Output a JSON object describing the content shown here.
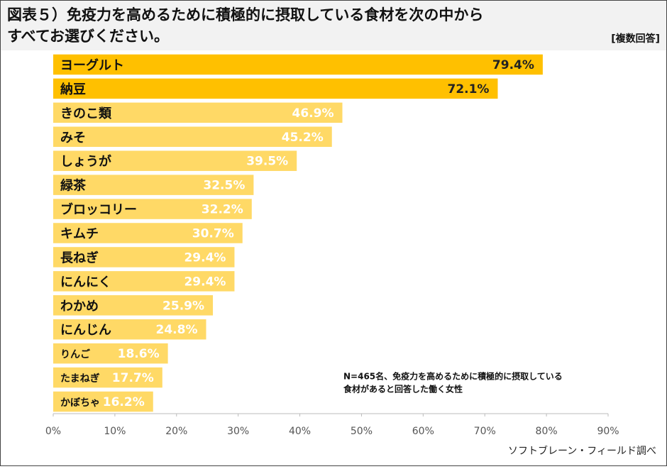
{
  "chart_data": {
    "type": "bar",
    "orientation": "horizontal",
    "title_lines": [
      "図表５）免疫力を高めるために積極的に摂取している食材を次の中から",
      "すべてお選びください。"
    ],
    "subtitle": "[複数回答]",
    "categories": [
      "ヨーグルト",
      "納豆",
      "きのこ類",
      "みそ",
      "しょうが",
      "緑茶",
      "ブロッコリー",
      "キムチ",
      "長ねぎ",
      "にんにく",
      "わかめ",
      "にんじん",
      "りんご",
      "たまねぎ",
      "かぼちゃ"
    ],
    "values": [
      79.4,
      72.1,
      46.9,
      45.2,
      39.5,
      32.5,
      32.2,
      30.7,
      29.4,
      29.4,
      25.9,
      24.8,
      18.6,
      17.7,
      16.2
    ],
    "value_labels": [
      "79.4%",
      "72.1%",
      "46.9%",
      "45.2%",
      "39.5%",
      "32.5%",
      "32.2%",
      "30.7%",
      "29.4%",
      "29.4%",
      "25.9%",
      "24.8%",
      "18.6%",
      "17.7%",
      "16.2%"
    ],
    "colors": [
      "#ffc000",
      "#ffc000",
      "#ffd966",
      "#ffd966",
      "#ffd966",
      "#ffd966",
      "#ffd966",
      "#ffd966",
      "#ffd966",
      "#ffd966",
      "#ffd966",
      "#ffd966",
      "#ffd966",
      "#ffd966",
      "#ffd966"
    ],
    "xlim": [
      0,
      90
    ],
    "xticks": [
      {
        "value": 0,
        "label": "0%"
      },
      {
        "value": 10,
        "label": "10%"
      },
      {
        "value": 20,
        "label": "20%"
      },
      {
        "value": 30,
        "label": "30%"
      },
      {
        "value": 40,
        "label": "40%"
      },
      {
        "value": 50,
        "label": "50%"
      },
      {
        "value": 60,
        "label": "60%"
      },
      {
        "value": 70,
        "label": "70%"
      },
      {
        "value": 80,
        "label": "80%"
      },
      {
        "value": 90,
        "label": "90%"
      }
    ],
    "grid": false,
    "note_lines": [
      "N=465名、免疫力を高めるために積極的に摂取している",
      "食材があると回答した働く女性"
    ],
    "source": "ソフトブレーン・フィールド調べ"
  }
}
